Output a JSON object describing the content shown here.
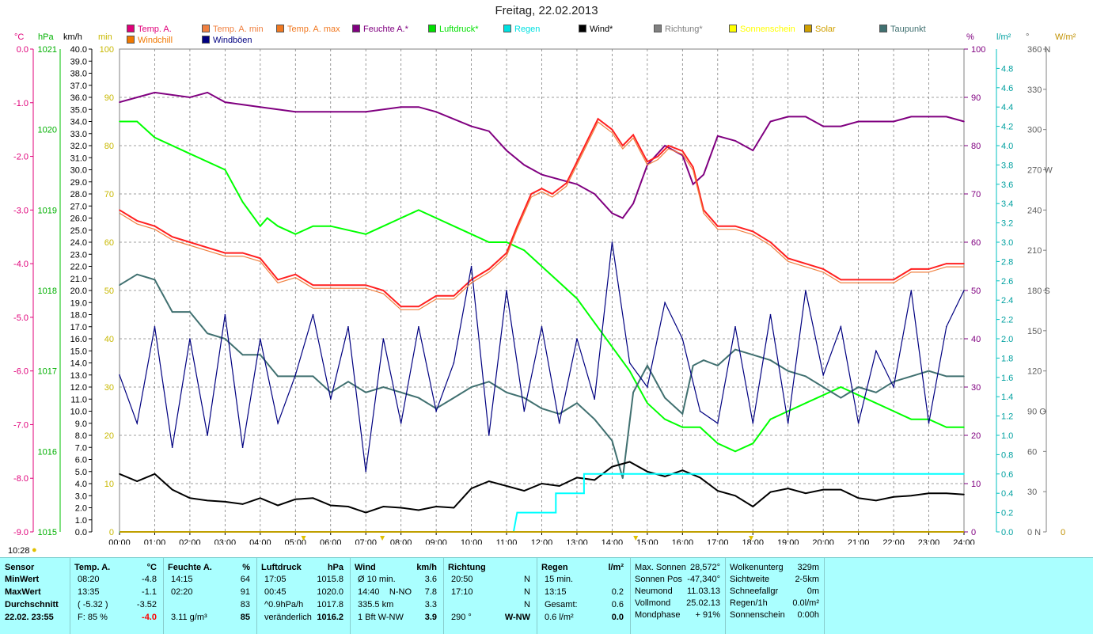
{
  "title": "Freitag, 22.02.2013",
  "axis_units": {
    "temp": "°C",
    "pressure": "hPa",
    "wind": "km/h",
    "sun_min": "min",
    "humidity": "%",
    "rain": "l/m²",
    "dir": "°",
    "solar": "W/m²"
  },
  "legend": [
    {
      "label": "Temp. A.",
      "color": "#e0007a"
    },
    {
      "label": "Temp. A. min",
      "color": "#f08040"
    },
    {
      "label": "Temp. A. max",
      "color": "#f07820"
    },
    {
      "label": "Feuchte A.*",
      "color": "#800080"
    },
    {
      "label": "Luftdruck*",
      "color": "#00e000"
    },
    {
      "label": "Regen",
      "color": "#00e0e0"
    },
    {
      "label": "Wind*",
      "color": "#000000"
    },
    {
      "label": "Richtung*",
      "color": "#808080"
    },
    {
      "label": "Sonnenschein",
      "color": "#ffff00"
    },
    {
      "label": "Solar",
      "color": "#d0a000"
    },
    {
      "label": "Taupunkt",
      "color": "#407070"
    },
    {
      "label": "Windchill",
      "color": "#f07800"
    },
    {
      "label": "Windböen",
      "color": "#000080"
    }
  ],
  "colors": {
    "grid": "#808080",
    "panel": "#aaffff",
    "humidity": "#800080",
    "pressure": "#00ff00",
    "temp": "#ff0080",
    "rain": "#00ffff",
    "solar": "#c09000"
  },
  "chart_data": {
    "type": "line",
    "x_ticks": [
      "00:00",
      "01:00",
      "02:00",
      "03:00",
      "04:00",
      "05:00",
      "06:00",
      "07:00",
      "08:00",
      "09:00",
      "10:00",
      "11:00",
      "12:00",
      "13:00",
      "14:00",
      "15:00",
      "16:00",
      "17:00",
      "18:00",
      "19:00",
      "20:00",
      "21:00",
      "22:00",
      "23:00",
      "24:00"
    ],
    "axes": {
      "temp_ticks": [
        "0.0",
        "-1.0",
        "-2.0",
        "-3.0",
        "-4.0",
        "-5.0",
        "-6.0",
        "-7.0",
        "-8.0",
        "-9.0"
      ],
      "temp_range": [
        -9.0,
        0.0
      ],
      "pressure_ticks": [
        "1021",
        "1020",
        "1019",
        "1018",
        "1017",
        "1016",
        "1015"
      ],
      "pressure_range": [
        1015,
        1021
      ],
      "wind_ticks": [
        "40.0",
        "39.0",
        "38.0",
        "37.0",
        "36.0",
        "35.0",
        "34.0",
        "33.0",
        "32.0",
        "31.0",
        "30.0",
        "29.0",
        "28.0",
        "27.0",
        "26.0",
        "25.0",
        "24.0",
        "23.0",
        "22.0",
        "21.0",
        "20.0",
        "19.0",
        "18.0",
        "17.0",
        "16.0",
        "15.0",
        "14.0",
        "13.0",
        "12.0",
        "11.0",
        "10.0",
        "9.0",
        "8.0",
        "7.0",
        "6.0",
        "5.0",
        "4.0",
        "3.0",
        "2.0",
        "1.0",
        "0.0"
      ],
      "wind_range": [
        0,
        40
      ],
      "sun_ticks": [
        "100",
        "90",
        "80",
        "70",
        "60",
        "50",
        "40",
        "30",
        "20",
        "10",
        "0"
      ],
      "sun_range": [
        0,
        100
      ],
      "humidity_ticks": [
        "100",
        "90",
        "80",
        "70",
        "60",
        "50",
        "40",
        "30",
        "20",
        "10",
        "0"
      ],
      "humidity_range": [
        0,
        100
      ],
      "rain_ticks": [
        "4.8",
        "4.6",
        "4.4",
        "4.2",
        "4.0",
        "3.8",
        "3.6",
        "3.4",
        "3.2",
        "3.0",
        "2.8",
        "2.6",
        "2.4",
        "2.2",
        "2.0",
        "1.8",
        "1.6",
        "1.4",
        "1.2",
        "1.0",
        "0.8",
        "0.6",
        "0.4",
        "0.2",
        "0.0"
      ],
      "rain_range": [
        0,
        5.0
      ],
      "dir_ticks": [
        "360 N",
        "330",
        "300",
        "270 W",
        "240",
        "210",
        "180 S",
        "150",
        "120",
        "90 O",
        "60",
        "30",
        "0 N"
      ],
      "dir_range": [
        0,
        360
      ],
      "solar_ticks": [
        "W/m²",
        "0"
      ]
    },
    "series": [
      {
        "name": "Feuchte A.*",
        "axis": "humidity",
        "x": [
          0,
          0.5,
          1,
          2,
          2.5,
          3,
          4,
          5,
          6,
          7,
          8,
          8.5,
          9,
          10,
          10.5,
          11,
          11.5,
          12,
          12.5,
          13,
          13.5,
          14,
          14.3,
          14.6,
          15,
          15.5,
          16,
          16.3,
          16.6,
          17,
          17.5,
          18,
          18.5,
          19,
          19.5,
          20,
          20.5,
          21,
          22,
          22.5,
          23,
          23.5,
          24
        ],
        "y": [
          89,
          90,
          91,
          90,
          91,
          89,
          88,
          87,
          87,
          87,
          88,
          88,
          87,
          84,
          83,
          79,
          76,
          74,
          73,
          72,
          70,
          66,
          65,
          68,
          76,
          80,
          78,
          72,
          74,
          82,
          81,
          79,
          85,
          86,
          86,
          84,
          84,
          85,
          85,
          86,
          86,
          86,
          85
        ]
      },
      {
        "name": "Luftdruck*",
        "axis": "pressure",
        "x": [
          0,
          0.5,
          1,
          2,
          3,
          3.5,
          4,
          4.2,
          4.5,
          5,
          5.5,
          6,
          7,
          7.5,
          8,
          8.5,
          9,
          9.5,
          10,
          10.5,
          11,
          11.5,
          12,
          12.5,
          13,
          13.5,
          14,
          14.5,
          15,
          15.5,
          16,
          16.5,
          17,
          17.5,
          18,
          18.5,
          19,
          19.5,
          20,
          20.5,
          21,
          21.5,
          22,
          22.5,
          23,
          23.5,
          24
        ],
        "y": [
          1020.1,
          1020.1,
          1019.9,
          1019.7,
          1019.5,
          1019.1,
          1018.8,
          1018.9,
          1018.8,
          1018.7,
          1018.8,
          1018.8,
          1018.7,
          1018.8,
          1018.9,
          1019.0,
          1018.9,
          1018.8,
          1018.7,
          1018.6,
          1018.6,
          1018.5,
          1018.3,
          1018.1,
          1017.9,
          1017.6,
          1017.3,
          1017.0,
          1016.6,
          1016.4,
          1016.3,
          1016.3,
          1016.1,
          1016.0,
          1016.1,
          1016.4,
          1016.5,
          1016.6,
          1016.7,
          1016.8,
          1016.7,
          1016.6,
          1016.5,
          1016.4,
          1016.4,
          1016.3,
          1016.3
        ]
      },
      {
        "name": "Temp. A.",
        "axis": "temp",
        "x": [
          0,
          0.5,
          1,
          1.5,
          2,
          2.5,
          3,
          3.5,
          4,
          4.5,
          5,
          5.5,
          6,
          6.5,
          7,
          7.5,
          8,
          8.5,
          9,
          9.5,
          10,
          10.5,
          11,
          11.3,
          11.7,
          12,
          12.3,
          12.7,
          13,
          13.3,
          13.6,
          14,
          14.3,
          14.6,
          15,
          15.3,
          15.6,
          16,
          16.3,
          16.6,
          17,
          17.5,
          18,
          18.5,
          19,
          19.5,
          20,
          20.5,
          21,
          22,
          22.5,
          23,
          23.5,
          24
        ],
        "y": [
          -3.0,
          -3.2,
          -3.3,
          -3.5,
          -3.6,
          -3.7,
          -3.8,
          -3.8,
          -3.9,
          -4.3,
          -4.2,
          -4.4,
          -4.4,
          -4.4,
          -4.4,
          -4.5,
          -4.8,
          -4.8,
          -4.6,
          -4.6,
          -4.3,
          -4.1,
          -3.8,
          -3.3,
          -2.7,
          -2.6,
          -2.7,
          -2.5,
          -2.1,
          -1.7,
          -1.3,
          -1.5,
          -1.8,
          -1.6,
          -2.1,
          -2.0,
          -1.8,
          -1.9,
          -2.2,
          -3.0,
          -3.3,
          -3.3,
          -3.4,
          -3.6,
          -3.9,
          -4.0,
          -4.1,
          -4.3,
          -4.3,
          -4.3,
          -4.1,
          -4.1,
          -4.0,
          -4.0
        ]
      },
      {
        "name": "Taupunkt",
        "axis": "temp",
        "x": [
          0,
          0.5,
          1,
          1.5,
          2,
          2.5,
          3,
          3.5,
          4,
          4.5,
          5,
          5.5,
          6,
          6.5,
          7,
          7.5,
          8,
          8.5,
          9,
          9.5,
          10,
          10.5,
          11,
          11.5,
          12,
          12.5,
          13,
          13.5,
          14,
          14.3,
          14.6,
          15,
          15.5,
          16,
          16.3,
          16.6,
          17,
          17.5,
          18,
          18.5,
          19,
          19.5,
          20,
          20.5,
          21,
          21.5,
          22,
          22.5,
          23,
          23.5,
          24
        ],
        "y": [
          -4.4,
          -4.2,
          -4.3,
          -4.9,
          -4.9,
          -5.3,
          -5.4,
          -5.7,
          -5.7,
          -6.1,
          -6.1,
          -6.1,
          -6.4,
          -6.2,
          -6.4,
          -6.3,
          -6.4,
          -6.5,
          -6.7,
          -6.5,
          -6.3,
          -6.2,
          -6.4,
          -6.5,
          -6.7,
          -6.8,
          -6.6,
          -6.9,
          -7.3,
          -8.0,
          -6.4,
          -5.9,
          -6.5,
          -6.8,
          -5.9,
          -5.8,
          -5.9,
          -5.6,
          -5.7,
          -5.8,
          -6.0,
          -6.1,
          -6.3,
          -6.5,
          -6.3,
          -6.4,
          -6.2,
          -6.1,
          -6.0,
          -6.1,
          -6.1
        ]
      },
      {
        "name": "Wind*",
        "axis": "wind",
        "x": [
          0,
          0.5,
          1,
          1.5,
          2,
          2.5,
          3,
          3.5,
          4,
          4.5,
          5,
          5.5,
          6,
          6.5,
          7,
          7.5,
          8,
          8.5,
          9,
          9.5,
          10,
          10.5,
          11,
          11.5,
          12,
          12.5,
          13,
          13.5,
          14,
          14.5,
          15,
          15.5,
          16,
          16.5,
          17,
          17.5,
          18,
          18.5,
          19,
          19.5,
          20,
          20.5,
          21,
          21.5,
          22,
          22.5,
          23,
          23.5,
          24
        ],
        "y": [
          4.8,
          4.2,
          4.8,
          3.5,
          2.8,
          2.6,
          2.5,
          2.3,
          2.8,
          2.2,
          2.7,
          2.8,
          2.2,
          2.1,
          1.6,
          2.1,
          2.0,
          1.8,
          2.1,
          2.0,
          3.6,
          4.2,
          3.8,
          3.4,
          4.0,
          3.8,
          4.5,
          4.3,
          5.4,
          5.8,
          5.0,
          4.6,
          5.1,
          4.5,
          3.4,
          3.0,
          2.1,
          3.3,
          3.6,
          3.2,
          3.5,
          3.5,
          2.8,
          2.6,
          2.9,
          3.0,
          3.2,
          3.2,
          3.1
        ]
      },
      {
        "name": "Windböen",
        "axis": "wind",
        "x": [
          0,
          0.5,
          1,
          1.5,
          2,
          2.5,
          3,
          3.5,
          4,
          4.5,
          5,
          5.5,
          6,
          6.5,
          7,
          7.5,
          8,
          8.5,
          9,
          9.5,
          10,
          10.5,
          11,
          11.5,
          12,
          12.5,
          13,
          13.5,
          14,
          14.5,
          15,
          15.5,
          16,
          16.5,
          17,
          17.5,
          18,
          18.5,
          19,
          19.5,
          20,
          20.5,
          21,
          21.5,
          22,
          22.5,
          23,
          23.5,
          24
        ],
        "y": [
          13.0,
          9.0,
          17.0,
          7.0,
          16.0,
          8.0,
          18.0,
          7.0,
          16.0,
          9.0,
          13.0,
          18.0,
          11.0,
          17.0,
          5.0,
          16.0,
          9.0,
          17.0,
          10.0,
          14.0,
          22.0,
          8.0,
          20.0,
          10.0,
          17.0,
          9.0,
          16.0,
          11.0,
          24.0,
          14.0,
          12.0,
          19.0,
          16.0,
          10.0,
          9.0,
          17.0,
          9.0,
          18.0,
          9.0,
          20.0,
          13.0,
          17.0,
          9.0,
          15.0,
          12.0,
          20.0,
          9.0,
          17.0,
          20.0
        ]
      },
      {
        "name": "Regen",
        "axis": "rain",
        "x": [
          0,
          11.2,
          11.3,
          12.4,
          12.4,
          13.2,
          13.2,
          24
        ],
        "y": [
          0,
          0,
          0.2,
          0.2,
          0.4,
          0.4,
          0.6,
          0.6
        ]
      }
    ]
  },
  "below_chart": {
    "left_time": "10:28",
    "sunrise": "07:28",
    "t1": "05:14",
    "t2": "14:40",
    "sunset": "17:57"
  },
  "panel": {
    "sensor": {
      "h": "Sensor",
      "rows": [
        "MinWert",
        "MaxWert",
        "Durchschnitt",
        "22.02.  23:55"
      ]
    },
    "temp": {
      "h": "Temp. A.",
      "u": "°C",
      "rows": [
        [
          "08:20",
          "-4.8"
        ],
        [
          "13:35",
          "-1.1"
        ],
        [
          "( -5.32 )",
          "-3.52"
        ],
        [
          "F: 85 %",
          "-4.0"
        ]
      ]
    },
    "hum": {
      "h": "Feuchte A.",
      "u": "%",
      "rows": [
        [
          "14:15",
          "64"
        ],
        [
          "02:20",
          "91"
        ],
        [
          "",
          "83"
        ],
        [
          "3.11 g/m³",
          "85"
        ]
      ]
    },
    "press": {
      "h": "Luftdruck",
      "u": "hPa",
      "rows": [
        [
          "17:05",
          "1015.8"
        ],
        [
          "00:45",
          "1020.0"
        ],
        [
          "^0.9hPa/h",
          "1017.8"
        ],
        [
          "veränderlich",
          "1016.2"
        ]
      ]
    },
    "wind": {
      "h": "Wind",
      "u": "km/h",
      "rows": [
        [
          "Ø 10 min.",
          "",
          "3.6"
        ],
        [
          "14:40",
          "N-NO",
          "7.8"
        ],
        [
          "335.5 km",
          "",
          "3.3"
        ],
        [
          "1 Bft W-NW",
          "",
          "3.9"
        ]
      ]
    },
    "dir": {
      "h": "Richtung",
      "rows": [
        [
          "20:50",
          "N"
        ],
        [
          "17:10",
          "N"
        ],
        [
          "",
          "N"
        ],
        [
          "290 °",
          "W-NW"
        ]
      ]
    },
    "rain": {
      "h": "Regen",
      "u": "l/m²",
      "rows": [
        [
          "15 min.",
          ""
        ],
        [
          "13:15",
          "0.2"
        ],
        [
          "Gesamt:",
          "0.6"
        ],
        [
          "0.6 l/m²",
          "0.0"
        ]
      ]
    },
    "sun": {
      "rows": [
        [
          "Max. Sonnen",
          "28,572°"
        ],
        [
          "Sonnen Pos",
          "-47,340°"
        ],
        [
          "Neumond",
          "11.03.13"
        ],
        [
          "Vollmond",
          "25.02.13"
        ],
        [
          "Mondphase",
          "+ 91%"
        ]
      ]
    },
    "extra": {
      "rows": [
        [
          "Wolkenunterg",
          "329m"
        ],
        [
          "Sichtweite",
          "2-5km"
        ],
        [
          "Schneefallgr",
          "0m"
        ],
        [
          "Regen/1h",
          "0.0l/m²"
        ],
        [
          "Sonnenschein",
          "0:00h"
        ]
      ]
    }
  }
}
